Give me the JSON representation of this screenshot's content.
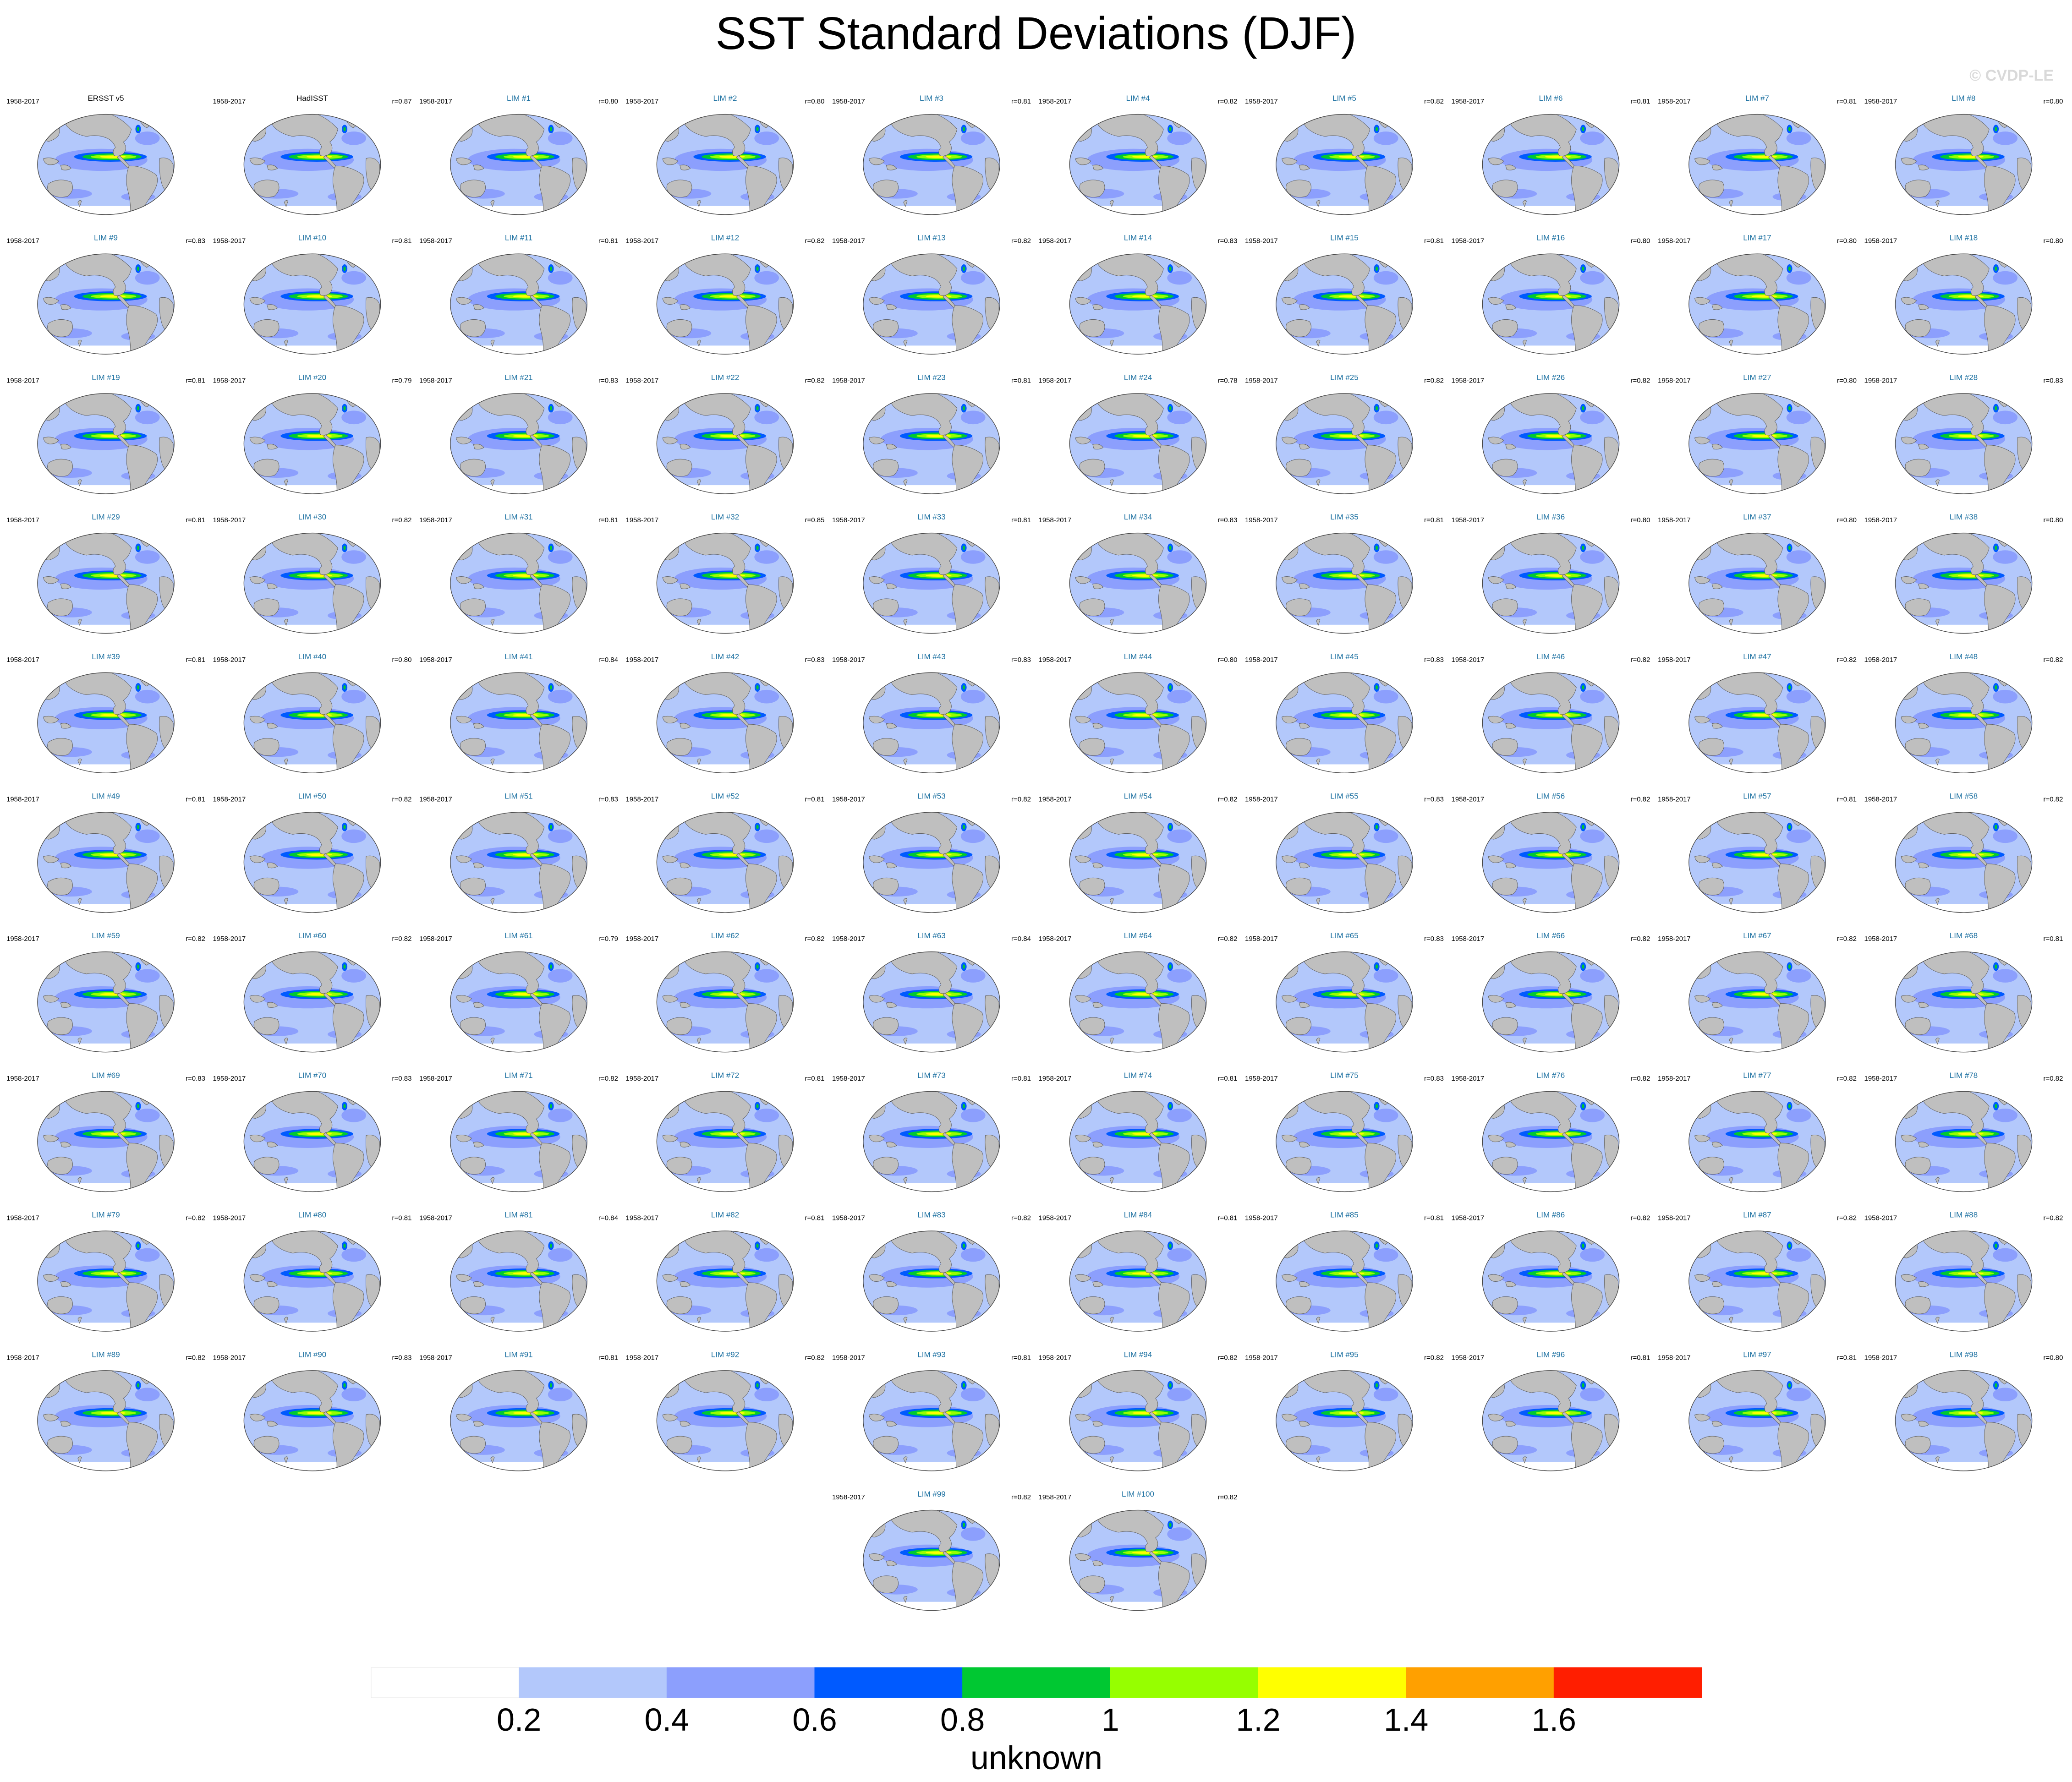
{
  "title": "SST Standard Deviations (DJF)",
  "watermark": "© CVDP-LE",
  "period": "1958-2017",
  "chart_data": {
    "type": "small-multiples-map",
    "title": "SST Standard Deviations (DJF)",
    "projection": "Robinson (global ocean)",
    "colorbar": {
      "levels": [
        0.2,
        0.4,
        0.6,
        0.8,
        1,
        1.2,
        1.4,
        1.6
      ],
      "colors": [
        "#ffffff",
        "#b3c8fb",
        "#8c9ffd",
        "#005aff",
        "#00c832",
        "#96ff00",
        "#ffff00",
        "#ffa000",
        "#ff1e00"
      ],
      "label": "unknown"
    },
    "panels": [
      {
        "label": "ERSST v5",
        "r": ""
      },
      {
        "label": "HadISST",
        "r": "r=0.87"
      },
      {
        "label": "LIM #1",
        "r": "r=0.80"
      },
      {
        "label": "LIM #2",
        "r": "r=0.80"
      },
      {
        "label": "LIM #3",
        "r": "r=0.81"
      },
      {
        "label": "LIM #4",
        "r": "r=0.82"
      },
      {
        "label": "LIM #5",
        "r": "r=0.82"
      },
      {
        "label": "LIM #6",
        "r": "r=0.81"
      },
      {
        "label": "LIM #7",
        "r": "r=0.81"
      },
      {
        "label": "LIM #8",
        "r": "r=0.80"
      },
      {
        "label": "LIM #9",
        "r": "r=0.83"
      },
      {
        "label": "LIM #10",
        "r": "r=0.81"
      },
      {
        "label": "LIM #11",
        "r": "r=0.81"
      },
      {
        "label": "LIM #12",
        "r": "r=0.82"
      },
      {
        "label": "LIM #13",
        "r": "r=0.82"
      },
      {
        "label": "LIM #14",
        "r": "r=0.83"
      },
      {
        "label": "LIM #15",
        "r": "r=0.81"
      },
      {
        "label": "LIM #16",
        "r": "r=0.80"
      },
      {
        "label": "LIM #17",
        "r": "r=0.80"
      },
      {
        "label": "LIM #18",
        "r": "r=0.80"
      },
      {
        "label": "LIM #19",
        "r": "r=0.81"
      },
      {
        "label": "LIM #20",
        "r": "r=0.79"
      },
      {
        "label": "LIM #21",
        "r": "r=0.83"
      },
      {
        "label": "LIM #22",
        "r": "r=0.82"
      },
      {
        "label": "LIM #23",
        "r": "r=0.81"
      },
      {
        "label": "LIM #24",
        "r": "r=0.78"
      },
      {
        "label": "LIM #25",
        "r": "r=0.82"
      },
      {
        "label": "LIM #26",
        "r": "r=0.82"
      },
      {
        "label": "LIM #27",
        "r": "r=0.80"
      },
      {
        "label": "LIM #28",
        "r": "r=0.83"
      },
      {
        "label": "LIM #29",
        "r": "r=0.81"
      },
      {
        "label": "LIM #30",
        "r": "r=0.82"
      },
      {
        "label": "LIM #31",
        "r": "r=0.81"
      },
      {
        "label": "LIM #32",
        "r": "r=0.85"
      },
      {
        "label": "LIM #33",
        "r": "r=0.81"
      },
      {
        "label": "LIM #34",
        "r": "r=0.83"
      },
      {
        "label": "LIM #35",
        "r": "r=0.81"
      },
      {
        "label": "LIM #36",
        "r": "r=0.80"
      },
      {
        "label": "LIM #37",
        "r": "r=0.80"
      },
      {
        "label": "LIM #38",
        "r": "r=0.80"
      },
      {
        "label": "LIM #39",
        "r": "r=0.81"
      },
      {
        "label": "LIM #40",
        "r": "r=0.80"
      },
      {
        "label": "LIM #41",
        "r": "r=0.84"
      },
      {
        "label": "LIM #42",
        "r": "r=0.83"
      },
      {
        "label": "LIM #43",
        "r": "r=0.83"
      },
      {
        "label": "LIM #44",
        "r": "r=0.80"
      },
      {
        "label": "LIM #45",
        "r": "r=0.83"
      },
      {
        "label": "LIM #46",
        "r": "r=0.82"
      },
      {
        "label": "LIM #47",
        "r": "r=0.82"
      },
      {
        "label": "LIM #48",
        "r": "r=0.82"
      },
      {
        "label": "LIM #49",
        "r": "r=0.81"
      },
      {
        "label": "LIM #50",
        "r": "r=0.82"
      },
      {
        "label": "LIM #51",
        "r": "r=0.83"
      },
      {
        "label": "LIM #52",
        "r": "r=0.81"
      },
      {
        "label": "LIM #53",
        "r": "r=0.82"
      },
      {
        "label": "LIM #54",
        "r": "r=0.82"
      },
      {
        "label": "LIM #55",
        "r": "r=0.83"
      },
      {
        "label": "LIM #56",
        "r": "r=0.82"
      },
      {
        "label": "LIM #57",
        "r": "r=0.81"
      },
      {
        "label": "LIM #58",
        "r": "r=0.82"
      },
      {
        "label": "LIM #59",
        "r": "r=0.82"
      },
      {
        "label": "LIM #60",
        "r": "r=0.82"
      },
      {
        "label": "LIM #61",
        "r": "r=0.79"
      },
      {
        "label": "LIM #62",
        "r": "r=0.82"
      },
      {
        "label": "LIM #63",
        "r": "r=0.84"
      },
      {
        "label": "LIM #64",
        "r": "r=0.82"
      },
      {
        "label": "LIM #65",
        "r": "r=0.83"
      },
      {
        "label": "LIM #66",
        "r": "r=0.82"
      },
      {
        "label": "LIM #67",
        "r": "r=0.82"
      },
      {
        "label": "LIM #68",
        "r": "r=0.81"
      },
      {
        "label": "LIM #69",
        "r": "r=0.83"
      },
      {
        "label": "LIM #70",
        "r": "r=0.83"
      },
      {
        "label": "LIM #71",
        "r": "r=0.82"
      },
      {
        "label": "LIM #72",
        "r": "r=0.81"
      },
      {
        "label": "LIM #73",
        "r": "r=0.81"
      },
      {
        "label": "LIM #74",
        "r": "r=0.81"
      },
      {
        "label": "LIM #75",
        "r": "r=0.83"
      },
      {
        "label": "LIM #76",
        "r": "r=0.82"
      },
      {
        "label": "LIM #77",
        "r": "r=0.82"
      },
      {
        "label": "LIM #78",
        "r": "r=0.82"
      },
      {
        "label": "LIM #79",
        "r": "r=0.82"
      },
      {
        "label": "LIM #80",
        "r": "r=0.81"
      },
      {
        "label": "LIM #81",
        "r": "r=0.84"
      },
      {
        "label": "LIM #82",
        "r": "r=0.81"
      },
      {
        "label": "LIM #83",
        "r": "r=0.82"
      },
      {
        "label": "LIM #84",
        "r": "r=0.81"
      },
      {
        "label": "LIM #85",
        "r": "r=0.81"
      },
      {
        "label": "LIM #86",
        "r": "r=0.82"
      },
      {
        "label": "LIM #87",
        "r": "r=0.82"
      },
      {
        "label": "LIM #88",
        "r": "r=0.82"
      },
      {
        "label": "LIM #89",
        "r": "r=0.82"
      },
      {
        "label": "LIM #90",
        "r": "r=0.83"
      },
      {
        "label": "LIM #91",
        "r": "r=0.81"
      },
      {
        "label": "LIM #92",
        "r": "r=0.82"
      },
      {
        "label": "LIM #93",
        "r": "r=0.81"
      },
      {
        "label": "LIM #94",
        "r": "r=0.82"
      },
      {
        "label": "LIM #95",
        "r": "r=0.82"
      },
      {
        "label": "LIM #96",
        "r": "r=0.81"
      },
      {
        "label": "LIM #97",
        "r": "r=0.81"
      },
      {
        "label": "LIM #98",
        "r": "r=0.80"
      },
      {
        "label": "LIM #99",
        "r": "r=0.82"
      },
      {
        "label": "LIM #100",
        "r": "r=0.82"
      }
    ]
  }
}
